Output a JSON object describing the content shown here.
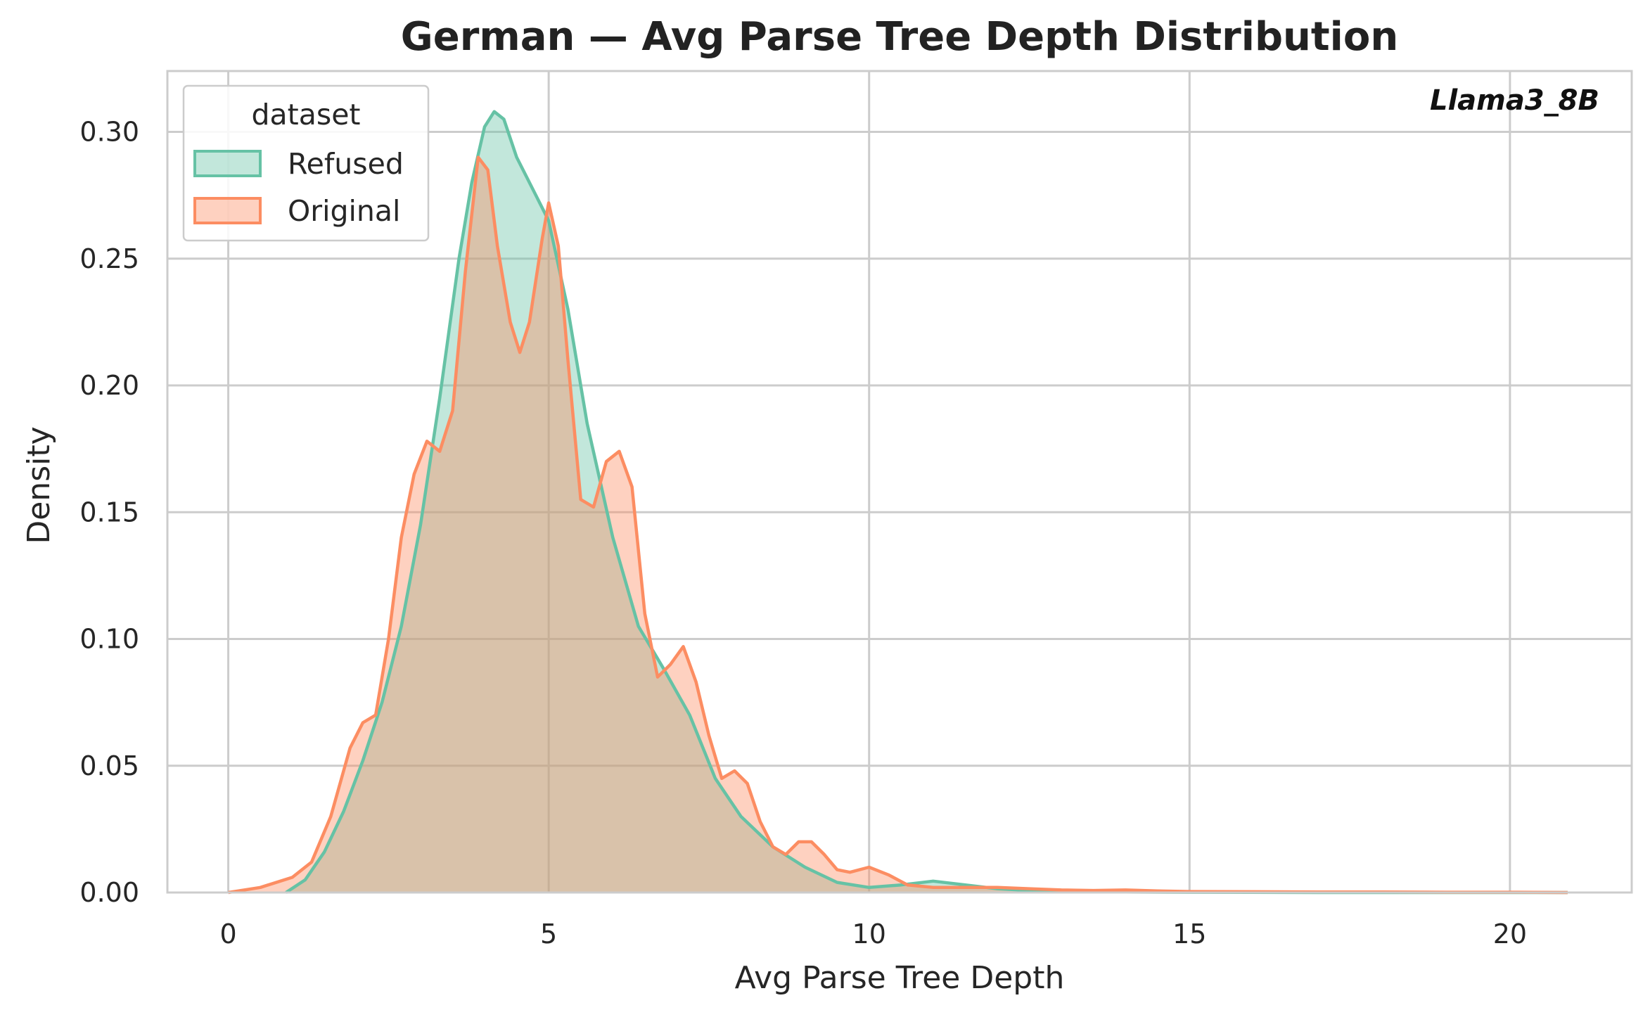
{
  "chart_data": {
    "type": "area",
    "title": "German — Avg Parse Tree Depth Distribution",
    "xlabel": "Avg Parse Tree Depth",
    "ylabel": "Density",
    "annotation": "Llama3_8B",
    "xlim": [
      -0.95,
      21.9
    ],
    "ylim": [
      0,
      0.324
    ],
    "xticks": [
      0,
      5,
      10,
      15,
      20
    ],
    "yticks": [
      0.0,
      0.05,
      0.1,
      0.15,
      0.2,
      0.25,
      0.3
    ],
    "ytick_labels": [
      "0.00",
      "0.05",
      "0.10",
      "0.15",
      "0.20",
      "0.25",
      "0.30"
    ],
    "grid": true,
    "legend": {
      "title": "dataset",
      "placement": "upper-left"
    },
    "series": [
      {
        "name": "Refused",
        "color": "#66c2a5",
        "x": [
          0.9,
          1.2,
          1.5,
          1.8,
          2.1,
          2.4,
          2.7,
          3.0,
          3.3,
          3.6,
          3.8,
          4.0,
          4.15,
          4.3,
          4.5,
          4.7,
          5.0,
          5.3,
          5.6,
          6.0,
          6.4,
          6.8,
          7.2,
          7.6,
          8.0,
          8.5,
          9.0,
          9.5,
          10.0,
          10.5,
          11.0,
          11.5,
          12.0,
          12.5,
          13.0,
          14.0,
          15.0,
          17.0,
          20.9
        ],
        "y": [
          0.0,
          0.005,
          0.016,
          0.032,
          0.052,
          0.075,
          0.105,
          0.145,
          0.195,
          0.25,
          0.28,
          0.302,
          0.308,
          0.305,
          0.29,
          0.28,
          0.265,
          0.23,
          0.185,
          0.14,
          0.105,
          0.088,
          0.07,
          0.045,
          0.03,
          0.018,
          0.01,
          0.004,
          0.002,
          0.003,
          0.0045,
          0.003,
          0.0015,
          0.0008,
          0.0004,
          0.0002,
          0.0001,
          0.0,
          0.0
        ]
      },
      {
        "name": "Original",
        "color": "#fc8d62",
        "x": [
          0.0,
          0.5,
          1.0,
          1.3,
          1.6,
          1.9,
          2.1,
          2.3,
          2.5,
          2.7,
          2.9,
          3.1,
          3.3,
          3.5,
          3.7,
          3.9,
          4.05,
          4.2,
          4.4,
          4.55,
          4.7,
          4.9,
          5.0,
          5.15,
          5.3,
          5.5,
          5.7,
          5.9,
          6.1,
          6.3,
          6.5,
          6.7,
          6.9,
          7.1,
          7.3,
          7.5,
          7.7,
          7.9,
          8.1,
          8.3,
          8.5,
          8.7,
          8.9,
          9.1,
          9.3,
          9.5,
          9.7,
          10.0,
          10.3,
          10.6,
          11.0,
          11.5,
          12.0,
          12.5,
          13.0,
          13.5,
          14.0,
          14.5,
          15.0,
          16.0,
          17.0,
          18.0,
          19.0,
          20.0,
          20.9
        ],
        "y": [
          0.0,
          0.002,
          0.006,
          0.012,
          0.03,
          0.057,
          0.067,
          0.07,
          0.1,
          0.14,
          0.165,
          0.178,
          0.174,
          0.19,
          0.245,
          0.29,
          0.285,
          0.255,
          0.225,
          0.213,
          0.225,
          0.258,
          0.272,
          0.255,
          0.21,
          0.155,
          0.152,
          0.17,
          0.174,
          0.16,
          0.11,
          0.085,
          0.09,
          0.097,
          0.083,
          0.062,
          0.045,
          0.048,
          0.043,
          0.028,
          0.018,
          0.015,
          0.02,
          0.02,
          0.015,
          0.009,
          0.008,
          0.01,
          0.007,
          0.003,
          0.002,
          0.002,
          0.002,
          0.0015,
          0.001,
          0.0008,
          0.001,
          0.0006,
          0.0004,
          0.0003,
          0.0002,
          0.0002,
          0.0001,
          0.0001,
          0.0
        ]
      }
    ]
  }
}
